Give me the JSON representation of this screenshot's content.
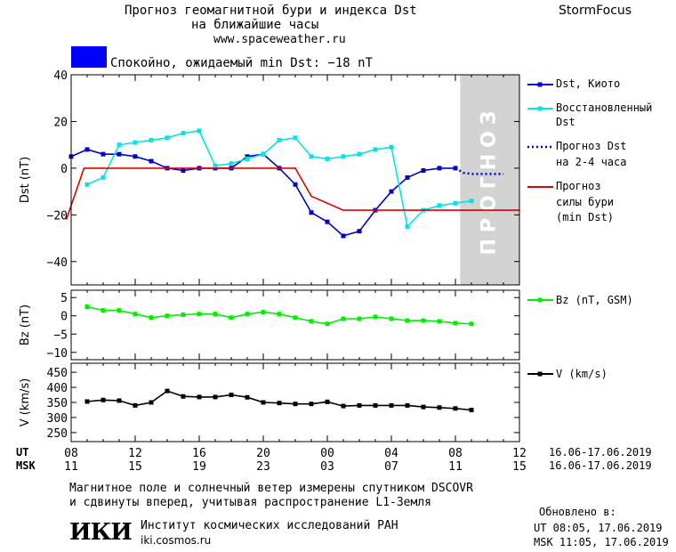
{
  "header": {
    "title_line1": "Прогноз геомагнитной бури и индекса Dst",
    "title_line2": "на ближайшие часы",
    "url": "www.spaceweather.ru",
    "brand": "StormFocus",
    "status_text": "Спокойно, ожидаемый min Dst: −18 nT",
    "status_color": "#0000ff"
  },
  "legend": {
    "dst_kyoto": "Dst, Киото",
    "dst_restored_1": "Восстановленный",
    "dst_restored_2": "Dst",
    "dst_forecast_1": "Прогноз Dst",
    "dst_forecast_2": "на 2-4 часа",
    "storm_forecast_1": "Прогноз",
    "storm_forecast_2": "силы бури",
    "storm_forecast_3": "(min Dst)",
    "bz": "Bz (nT, GSM)",
    "v": "V (km/s)"
  },
  "forecast_band_label": "ПРОГНОЗ",
  "axes": {
    "ut_label": "UT",
    "msk_label": "MSK",
    "ut_ticks": [
      "08",
      "12",
      "16",
      "20",
      "00",
      "04",
      "08",
      "12"
    ],
    "msk_ticks": [
      "11",
      "15",
      "19",
      "23",
      "03",
      "07",
      "11",
      "15"
    ],
    "date_range_ut": "16.06-17.06.2019",
    "date_range_msk": "16.06-17.06.2019"
  },
  "footer": {
    "note_line1": "Магнитное поле и солнечный ветер измерены спутником DSCOVR",
    "note_line2": "и сдвинуты вперед, учитывая распространение L1-Земля",
    "logo_text": "ИКИ",
    "institute": "Институт космических исследований РАН",
    "site": "iki.cosmos.ru",
    "updated_label": "Обновлено в:",
    "updated_ut": "UT   08:05, 17.06.2019",
    "updated_msk": "MSK 11:05, 17.06.2019"
  },
  "chart_data": [
    {
      "type": "line",
      "panel": "dst",
      "ylabel": "Dst (nT)",
      "ylim": [
        -50,
        40
      ],
      "yticks": [
        40,
        20,
        0,
        -20,
        -40
      ],
      "x_unit": "hours from 08 UT 16.06",
      "xlim": [
        0,
        28
      ],
      "forecast_band": [
        24.3,
        28
      ],
      "series": [
        {
          "name": "Dst, Киото",
          "color": "#0000cc",
          "marker": "square",
          "x": [
            0,
            1,
            2,
            3,
            4,
            5,
            6,
            7,
            8,
            9,
            10,
            11,
            12,
            13,
            14,
            15,
            16,
            17,
            18,
            19,
            20,
            21,
            22,
            23,
            24
          ],
          "y": [
            5,
            8,
            6,
            6,
            5,
            3,
            0,
            -1,
            0,
            0,
            0,
            5,
            6,
            0,
            -7,
            -19,
            -23,
            -29,
            -27,
            -18,
            -10,
            -4,
            -1,
            0,
            0
          ]
        },
        {
          "name": "Восстановленный Dst",
          "color": "#00e5e5",
          "marker": "square",
          "x": [
            1,
            2,
            3,
            4,
            5,
            6,
            7,
            8,
            9,
            10,
            11,
            12,
            13,
            14,
            15,
            16,
            17,
            18,
            19,
            20,
            21,
            22,
            23,
            24,
            25
          ],
          "y": [
            -7,
            -4,
            10,
            11,
            12,
            13,
            15,
            16,
            1,
            2,
            4,
            6,
            12,
            13,
            5,
            4,
            5,
            6,
            8,
            9,
            -25,
            -18,
            -16,
            -15,
            -14
          ]
        },
        {
          "name": "Прогноз Dst на 2-4 часа",
          "color": "#0000cc",
          "dash": true,
          "x": [
            24,
            24.5,
            25,
            25.5,
            26,
            26.5,
            27
          ],
          "y": [
            0,
            -2,
            -2.5,
            -2.5,
            -2.5,
            -2.5,
            -2.5
          ]
        },
        {
          "name": "Прогноз силы бури (min Dst)",
          "color": "#dd0000",
          "x": [
            -0.3,
            0.8,
            14,
            15,
            17,
            28
          ],
          "y": [
            -22,
            0,
            0,
            -12,
            -18,
            -18
          ]
        }
      ]
    },
    {
      "type": "line",
      "panel": "bz",
      "ylabel": "Bz (nT)",
      "ylim": [
        -12,
        7
      ],
      "yticks": [
        5,
        0,
        -5,
        -10
      ],
      "series": [
        {
          "name": "Bz (nT, GSM)",
          "color": "#00ee00",
          "marker": "square",
          "x": [
            1,
            2,
            3,
            4,
            5,
            6,
            7,
            8,
            9,
            10,
            11,
            12,
            13,
            14,
            15,
            16,
            17,
            18,
            19,
            20,
            21,
            22,
            23,
            24,
            25
          ],
          "y": [
            2.5,
            1.5,
            1.5,
            0.5,
            -0.5,
            0,
            0.3,
            0.5,
            0.5,
            -0.5,
            0.5,
            1,
            0.5,
            -0.5,
            -1.5,
            -2.2,
            -0.8,
            -0.8,
            -0.3,
            -0.8,
            -1.3,
            -1.3,
            -1.5,
            -2,
            -2.2
          ]
        }
      ]
    },
    {
      "type": "line",
      "panel": "v",
      "ylabel": "V (km/s)",
      "ylim": [
        220,
        480
      ],
      "yticks": [
        450,
        400,
        350,
        300,
        250
      ],
      "series": [
        {
          "name": "V (km/s)",
          "color": "#000000",
          "marker": "square",
          "x": [
            1,
            2,
            3,
            4,
            5,
            6,
            7,
            8,
            9,
            10,
            11,
            12,
            13,
            14,
            15,
            16,
            17,
            18,
            19,
            20,
            21,
            22,
            23,
            24,
            25
          ],
          "y": [
            353,
            358,
            356,
            340,
            350,
            388,
            370,
            368,
            368,
            375,
            367,
            350,
            348,
            345,
            345,
            352,
            338,
            340,
            340,
            340,
            340,
            335,
            333,
            330,
            325
          ]
        }
      ]
    }
  ]
}
